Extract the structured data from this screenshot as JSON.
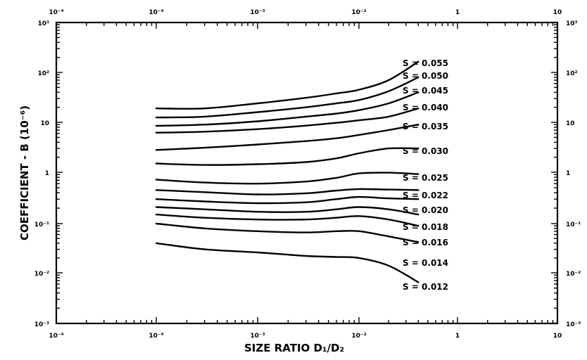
{
  "chart_data": {
    "type": "line",
    "title": "",
    "xlabel": "SIZE RATIO D₁/D₂",
    "ylabel": "COEFFICIENT  -  B   (10⁻⁶)",
    "x_scale": "log",
    "y_scale": "log",
    "xlim": [
      1e-05,
      10
    ],
    "ylim": [
      0.001,
      1000
    ],
    "grid": false,
    "legend": "none",
    "x_ticks_bottom": [
      "10⁻⁴",
      "10⁻⁴",
      "10⁻³",
      "10⁻²",
      "1",
      "10"
    ],
    "x_ticks_top": [
      "10⁻⁴",
      "10⁻⁴",
      "10⁻³",
      "10⁻²",
      "1",
      "10"
    ],
    "y_ticks_left": [
      "10³",
      "10²",
      "10",
      "1",
      "10⁻¹",
      "10⁻²",
      "10⁻³"
    ],
    "y_ticks_right": [
      "10³",
      "10²",
      "10",
      "1",
      "10⁻¹",
      "10⁻²",
      "10⁻³"
    ],
    "series": [
      {
        "name": "S = 0.055",
        "x": [
          0.0001,
          0.0003,
          0.001,
          0.003,
          0.006,
          0.01,
          0.02,
          0.04
        ],
        "y": [
          19,
          19,
          24,
          31,
          38,
          45,
          70,
          165
        ]
      },
      {
        "name": "S = 0.050",
        "x": [
          0.0001,
          0.0003,
          0.001,
          0.003,
          0.006,
          0.01,
          0.02,
          0.04
        ],
        "y": [
          12.5,
          13,
          16,
          20,
          24,
          28,
          42,
          80
        ]
      },
      {
        "name": "S = 0.045",
        "x": [
          0.0001,
          0.0003,
          0.001,
          0.003,
          0.006,
          0.01,
          0.02,
          0.04
        ],
        "y": [
          8.5,
          9,
          10.5,
          13,
          15,
          17.5,
          24,
          40
        ]
      },
      {
        "name": "S = 0.040",
        "x": [
          0.0001,
          0.0003,
          0.001,
          0.003,
          0.006,
          0.01,
          0.02,
          0.04
        ],
        "y": [
          6.2,
          6.5,
          7.3,
          8.6,
          9.8,
          11,
          13,
          19
        ]
      },
      {
        "name": "S = 0.035",
        "x": [
          0.0001,
          0.0003,
          0.001,
          0.003,
          0.006,
          0.01,
          0.02,
          0.04
        ],
        "y": [
          2.8,
          3.1,
          3.6,
          4.2,
          4.8,
          5.6,
          7,
          9
        ]
      },
      {
        "name": "S = 0.030",
        "x": [
          0.0001,
          0.0003,
          0.001,
          0.003,
          0.006,
          0.01,
          0.02,
          0.04
        ],
        "y": [
          1.5,
          1.4,
          1.45,
          1.6,
          1.9,
          2.4,
          3,
          3
        ]
      },
      {
        "name": "S = 0.025",
        "x": [
          0.0001,
          0.0003,
          0.001,
          0.003,
          0.006,
          0.01,
          0.02,
          0.04
        ],
        "y": [
          0.72,
          0.63,
          0.6,
          0.66,
          0.78,
          0.95,
          0.98,
          0.92
        ]
      },
      {
        "name": "S = 0.022",
        "x": [
          0.0001,
          0.0003,
          0.001,
          0.003,
          0.006,
          0.01,
          0.02,
          0.04
        ],
        "y": [
          0.45,
          0.41,
          0.37,
          0.39,
          0.44,
          0.47,
          0.46,
          0.45
        ]
      },
      {
        "name": "S = 0.020",
        "x": [
          0.0001,
          0.0003,
          0.001,
          0.003,
          0.006,
          0.01,
          0.02,
          0.04
        ],
        "y": [
          0.3,
          0.27,
          0.25,
          0.26,
          0.3,
          0.33,
          0.31,
          0.3
        ]
      },
      {
        "name": "S = 0.018",
        "x": [
          0.0001,
          0.0003,
          0.001,
          0.003,
          0.006,
          0.01,
          0.02,
          0.04
        ],
        "y": [
          0.21,
          0.19,
          0.17,
          0.17,
          0.19,
          0.21,
          0.19,
          0.15
        ]
      },
      {
        "name": "S = 0.016",
        "x": [
          0.0001,
          0.0003,
          0.001,
          0.003,
          0.006,
          0.01,
          0.02,
          0.04
        ],
        "y": [
          0.15,
          0.13,
          0.12,
          0.12,
          0.13,
          0.14,
          0.12,
          0.09
        ]
      },
      {
        "name": "S = 0.014",
        "x": [
          0.0001,
          0.0003,
          0.001,
          0.003,
          0.006,
          0.01,
          0.02,
          0.04
        ],
        "y": [
          0.1,
          0.08,
          0.07,
          0.066,
          0.07,
          0.07,
          0.055,
          0.042
        ]
      },
      {
        "name": "S = 0.012",
        "x": [
          0.0001,
          0.0003,
          0.001,
          0.003,
          0.006,
          0.01,
          0.02,
          0.04
        ],
        "y": [
          0.04,
          0.03,
          0.026,
          0.022,
          0.021,
          0.02,
          0.014,
          0.0065
        ]
      }
    ],
    "curve_labels": [
      "S  =  0.055",
      "S  =  0.050",
      "S  =  0.045",
      "S  =  0.040",
      "S  =  0.035",
      "S  =  0.030",
      "S  =  0.025",
      "S  =  0.022",
      "S  =  0.020",
      "S  =  0.018",
      "S  =  0.016",
      "S  =  0.014",
      "S  =  0.012"
    ]
  }
}
